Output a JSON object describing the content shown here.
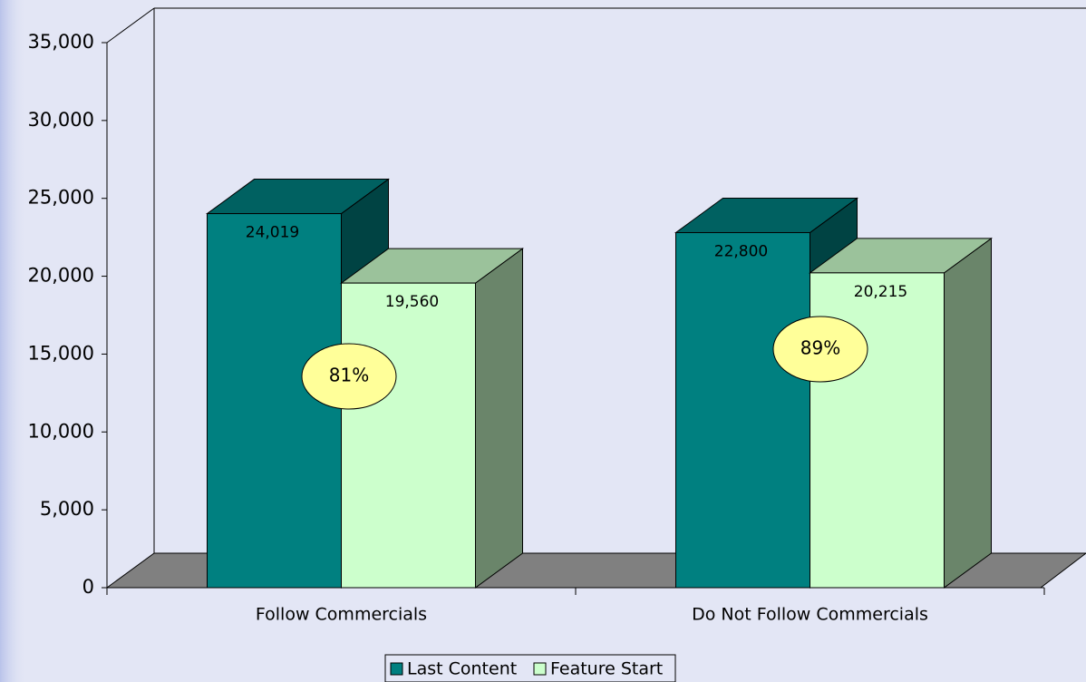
{
  "chart_data": {
    "type": "bar3d",
    "categories": [
      "Follow Commercials",
      "Do Not Follow Commercials"
    ],
    "series": [
      {
        "name": "Last Content",
        "color": "#008080",
        "values": [
          24019,
          22800
        ],
        "value_labels": [
          "24,019",
          "22,800"
        ]
      },
      {
        "name": "Feature Start",
        "color": "#ccffcc",
        "values": [
          19560,
          20215
        ],
        "value_labels": [
          "19,560",
          "20,215"
        ]
      }
    ],
    "annotations": [
      "81%",
      "89%"
    ],
    "annotation_color": "#ffff99",
    "ylim": [
      0,
      35000
    ],
    "yticks": [
      0,
      {
        "value": 5000,
        "label": "5,000"
      },
      {
        "value": 10000,
        "label": "10,000"
      },
      {
        "value": 15000,
        "label": "15,000"
      },
      {
        "value": 20000,
        "label": "20,000"
      },
      {
        "value": 25000,
        "label": "25,000"
      },
      {
        "value": 30000,
        "label": "30,000"
      },
      {
        "value": 35000,
        "label": "35,000"
      }
    ],
    "legend": "bottom"
  }
}
